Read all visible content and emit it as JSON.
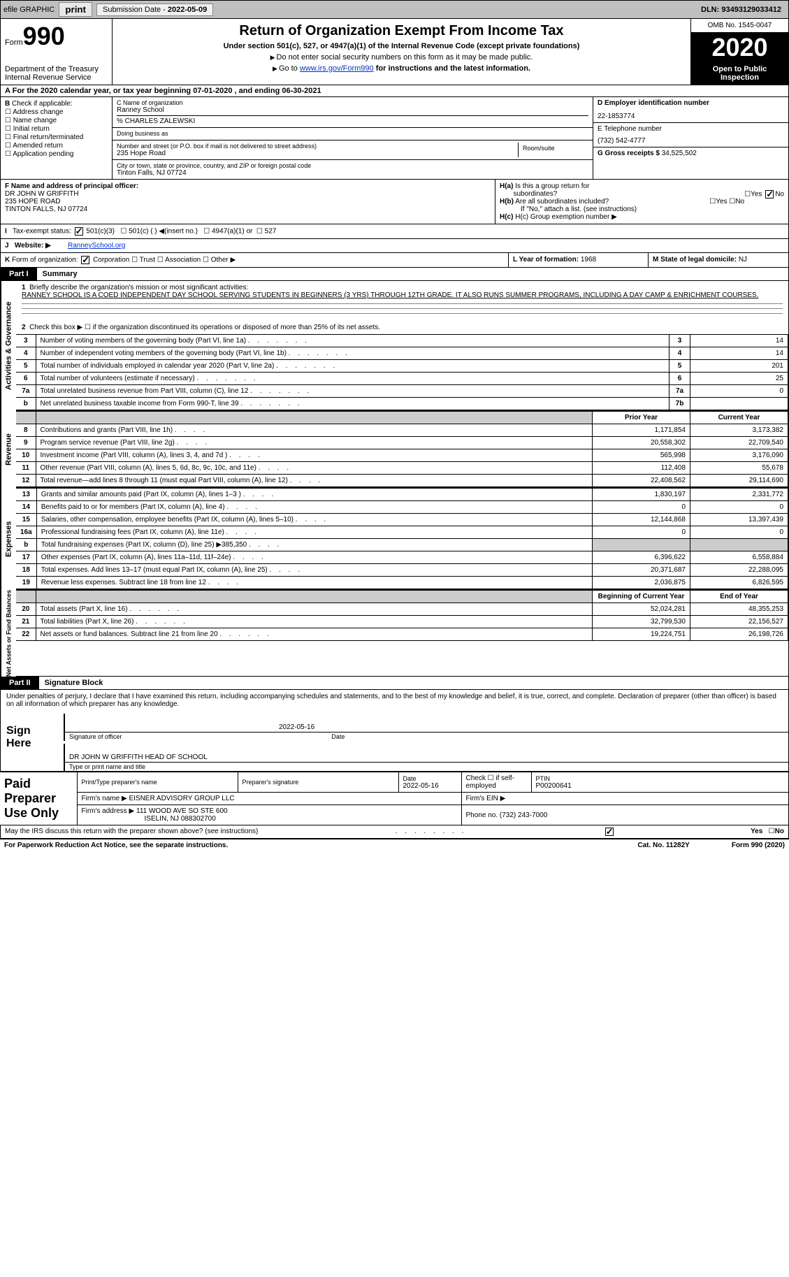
{
  "topbar": {
    "efile": "efile GRAPHIC",
    "print": "print",
    "sub_date_lbl": "Submission Date -",
    "sub_date": "2022-05-09",
    "dln_lbl": "DLN:",
    "dln": "93493129033412"
  },
  "header": {
    "form_lbl": "Form",
    "form_num": "990",
    "dept1": "Department of the Treasury",
    "dept2": "Internal Revenue Service",
    "title": "Return of Organization Exempt From Income Tax",
    "subtitle": "Under section 501(c), 527, or 4947(a)(1) of the Internal Revenue Code (except private foundations)",
    "note1": "Do not enter social security numbers on this form as it may be made public.",
    "note2_pre": "Go to ",
    "note2_link": "www.irs.gov/Form990",
    "note2_post": " for instructions and the latest information.",
    "omb": "OMB No. 1545-0047",
    "year": "2020",
    "open": "Open to Public Inspection"
  },
  "periodA": "For the 2020 calendar year, or tax year beginning 07-01-2020   , and ending 06-30-2021",
  "boxB": {
    "lbl": "Check if applicable:",
    "items": [
      "Address change",
      "Name change",
      "Initial return",
      "Final return/terminated",
      "Amended return",
      "Application pending"
    ]
  },
  "boxC": {
    "name_lbl": "C Name of organization",
    "name": "Ranney School",
    "care": "% CHARLES ZALEWSKI",
    "dba_lbl": "Doing business as",
    "addr_lbl": "Number and street (or P.O. box if mail is not delivered to street address)",
    "addr": "235 Hope Road",
    "room_lbl": "Room/suite",
    "city_lbl": "City or town, state or province, country, and ZIP or foreign postal code",
    "city": "Tinton Falls, NJ  07724"
  },
  "boxD": {
    "lbl": "D Employer identification number",
    "val": "22-1853774"
  },
  "boxE": {
    "lbl": "E Telephone number",
    "val": "(732) 542-4777"
  },
  "boxG": {
    "lbl": "G Gross receipts $",
    "val": "34,525,502"
  },
  "boxF": {
    "lbl": "F  Name and address of principal officer:",
    "l1": "DR JOHN W GRIFFITH",
    "l2": "235 HOPE ROAD",
    "l3": "TINTON FALLS, NJ  07724"
  },
  "boxH": {
    "a_lbl": "H(a)  Is this a group return for subordinates?",
    "b_lbl": "H(b)  Are all subordinates included?",
    "b_note": "If \"No,\" attach a list. (see instructions)",
    "c_lbl": "H(c)  Group exemption number",
    "yes": "Yes",
    "no": "No"
  },
  "boxI": {
    "lbl": "I   Tax-exempt status:",
    "o1": "501(c)(3)",
    "o2": "501(c) (  )",
    "o2n": "(insert no.)",
    "o3": "4947(a)(1) or",
    "o4": "527"
  },
  "boxJ": {
    "lbl": "J   Website:",
    "val": "RanneySchool.org"
  },
  "boxK": {
    "lbl": "K Form of organization:",
    "o1": "Corporation",
    "o2": "Trust",
    "o3": "Association",
    "o4": "Other"
  },
  "boxL": {
    "lbl": "L Year of formation:",
    "val": "1968"
  },
  "boxM": {
    "lbl": "M State of legal domicile:",
    "val": "NJ"
  },
  "part1": {
    "lbl": "Part I",
    "title": "Summary"
  },
  "summary": {
    "l1": "Briefly describe the organization's mission or most significant activities:",
    "mission": "RANNEY SCHOOL IS A COED INDEPENDENT DAY SCHOOL SERVING STUDENTS IN BEGINNERS (3 YRS) THROUGH 12TH GRADE. IT ALSO RUNS SUMMER PROGRAMS, INCLUDING A DAY CAMP & ENRICHMENT COURSES.",
    "l2": "Check this box ▶ ☐  if the organization discontinued its operations or disposed of more than 25% of its net assets.",
    "rows_top": [
      {
        "n": "3",
        "t": "Number of voting members of the governing body (Part VI, line 1a)",
        "b": "3",
        "v": "14"
      },
      {
        "n": "4",
        "t": "Number of independent voting members of the governing body (Part VI, line 1b)",
        "b": "4",
        "v": "14"
      },
      {
        "n": "5",
        "t": "Total number of individuals employed in calendar year 2020 (Part V, line 2a)",
        "b": "5",
        "v": "201"
      },
      {
        "n": "6",
        "t": "Total number of volunteers (estimate if necessary)",
        "b": "6",
        "v": "25"
      },
      {
        "n": "7a",
        "t": "Total unrelated business revenue from Part VIII, column (C), line 12",
        "b": "7a",
        "v": "0"
      },
      {
        "n": "b",
        "t": "Net unrelated business taxable income from Form 990-T, line 39",
        "b": "7b",
        "v": ""
      }
    ],
    "hdr_prior": "Prior Year",
    "hdr_cur": "Current Year",
    "rev_rows": [
      {
        "n": "8",
        "t": "Contributions and grants (Part VIII, line 1h)",
        "p": "1,171,854",
        "c": "3,173,382"
      },
      {
        "n": "9",
        "t": "Program service revenue (Part VIII, line 2g)",
        "p": "20,558,302",
        "c": "22,709,540"
      },
      {
        "n": "10",
        "t": "Investment income (Part VIII, column (A), lines 3, 4, and 7d )",
        "p": "565,998",
        "c": "3,176,090"
      },
      {
        "n": "11",
        "t": "Other revenue (Part VIII, column (A), lines 5, 6d, 8c, 9c, 10c, and 11e)",
        "p": "112,408",
        "c": "55,678"
      },
      {
        "n": "12",
        "t": "Total revenue—add lines 8 through 11 (must equal Part VIII, column (A), line 12)",
        "p": "22,408,562",
        "c": "29,114,690"
      }
    ],
    "exp_rows": [
      {
        "n": "13",
        "t": "Grants and similar amounts paid (Part IX, column (A), lines 1–3 )",
        "p": "1,830,197",
        "c": "2,331,772"
      },
      {
        "n": "14",
        "t": "Benefits paid to or for members (Part IX, column (A), line 4)",
        "p": "0",
        "c": "0"
      },
      {
        "n": "15",
        "t": "Salaries, other compensation, employee benefits (Part IX, column (A), lines 5–10)",
        "p": "12,144,868",
        "c": "13,397,439"
      },
      {
        "n": "16a",
        "t": "Professional fundraising fees (Part IX, column (A), line 11e)",
        "p": "0",
        "c": "0"
      },
      {
        "n": "b",
        "t": "Total fundraising expenses (Part IX, column (D), line 25) ▶385,350",
        "p": "",
        "c": "",
        "shade": true
      },
      {
        "n": "17",
        "t": "Other expenses (Part IX, column (A), lines 11a–11d, 11f–24e)",
        "p": "6,396,622",
        "c": "6,558,884"
      },
      {
        "n": "18",
        "t": "Total expenses. Add lines 13–17 (must equal Part IX, column (A), line 25)",
        "p": "20,371,687",
        "c": "22,288,095"
      },
      {
        "n": "19",
        "t": "Revenue less expenses. Subtract line 18 from line 12",
        "p": "2,036,875",
        "c": "6,826,595"
      }
    ],
    "hdr_begin": "Beginning of Current Year",
    "hdr_end": "End of Year",
    "net_rows": [
      {
        "n": "20",
        "t": "Total assets (Part X, line 16)",
        "p": "52,024,281",
        "c": "48,355,253"
      },
      {
        "n": "21",
        "t": "Total liabilities (Part X, line 26)",
        "p": "32,799,530",
        "c": "22,156,527"
      },
      {
        "n": "22",
        "t": "Net assets or fund balances. Subtract line 21 from line 20",
        "p": "19,224,751",
        "c": "26,198,726"
      }
    ]
  },
  "vtabs": {
    "gov": "Activities & Governance",
    "rev": "Revenue",
    "exp": "Expenses",
    "net": "Net Assets or Fund Balances"
  },
  "part2": {
    "lbl": "Part II",
    "title": "Signature Block"
  },
  "sig": {
    "decl": "Under penalties of perjury, I declare that I have examined this return, including accompanying schedules and statements, and to the best of my knowledge and belief, it is true, correct, and complete. Declaration of preparer (other than officer) is based on all information of which preparer has any knowledge.",
    "sign_here": "Sign Here",
    "sig_off": "Signature of officer",
    "date_lbl": "Date",
    "date": "2022-05-16",
    "name": "DR JOHN W GRIFFITH  HEAD OF SCHOOL",
    "type_lbl": "Type or print name and title"
  },
  "paid": {
    "lbl": "Paid Preparer Use Only",
    "h_name": "Print/Type preparer's name",
    "h_sig": "Preparer's signature",
    "h_date": "Date",
    "date": "2022-05-16",
    "h_self": "Check ☐ if self-employed",
    "h_ptin": "PTIN",
    "ptin": "P00200641",
    "firm_lbl": "Firm's name   ▶",
    "firm": "EISNER ADVISORY GROUP LLC",
    "ein_lbl": "Firm's EIN ▶",
    "addr_lbl": "Firm's address ▶",
    "addr1": "111 WOOD AVE SO STE 600",
    "addr2": "ISELIN, NJ  088302700",
    "phone_lbl": "Phone no.",
    "phone": "(732) 243-7000"
  },
  "discuss": {
    "q": "May the IRS discuss this return with the preparer shown above? (see instructions)",
    "yes": "Yes",
    "no": "No"
  },
  "footer": {
    "pra": "For Paperwork Reduction Act Notice, see the separate instructions.",
    "cat": "Cat. No. 11282Y",
    "form": "Form 990 (2020)"
  }
}
